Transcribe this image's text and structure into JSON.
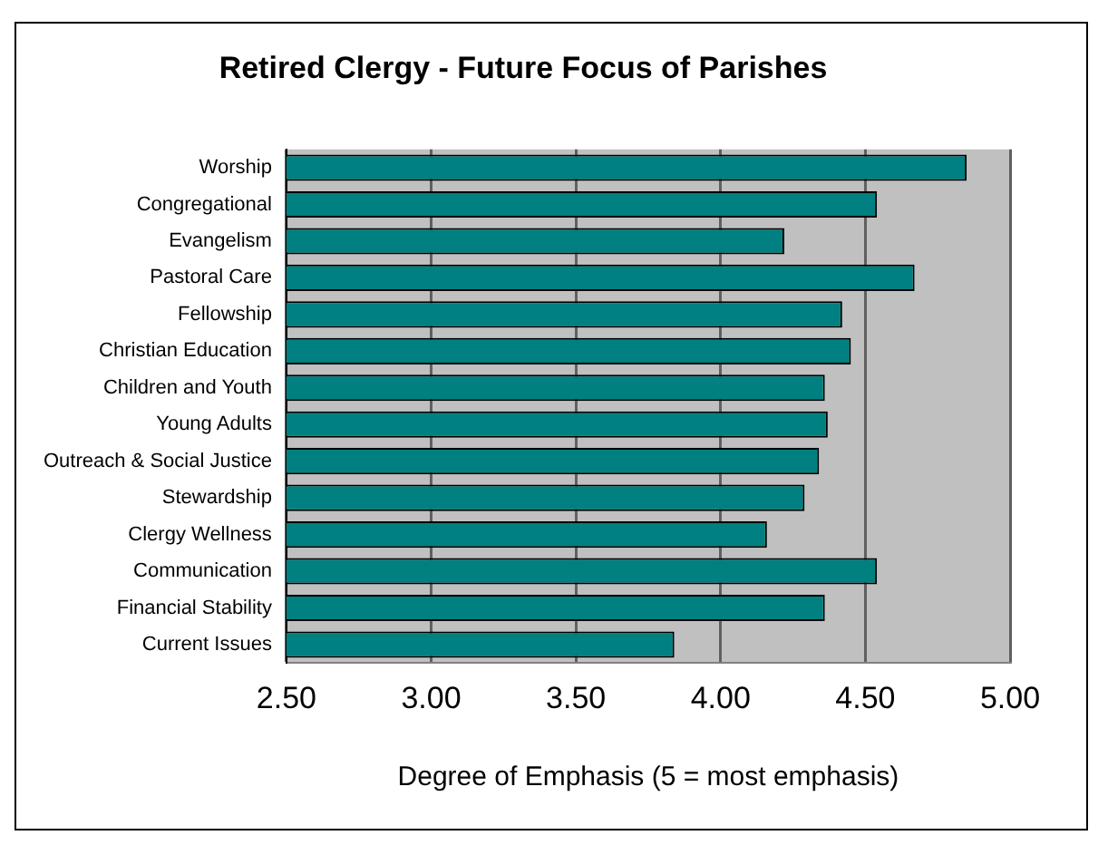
{
  "chart_data": {
    "type": "bar",
    "orientation": "horizontal",
    "title": "Retired Clergy - Future Focus of Parishes",
    "xlabel": "Degree of Emphasis (5 = most emphasis)",
    "categories": [
      "Worship",
      "Congregational",
      "Evangelism",
      "Pastoral Care",
      "Fellowship",
      "Christian Education",
      "Children and Youth",
      "Young Adults",
      "Outreach & Social Justice",
      "Stewardship",
      "Clergy Wellness",
      "Communication",
      "Financial Stability",
      "Current Issues"
    ],
    "values": [
      4.85,
      4.54,
      4.22,
      4.67,
      4.42,
      4.45,
      4.36,
      4.37,
      4.34,
      4.29,
      4.16,
      4.54,
      4.36,
      3.84
    ],
    "color": "#008080",
    "xlim": [
      2.5,
      5
    ],
    "xticks": [
      {
        "value": 2.5,
        "label": "2.50"
      },
      {
        "value": 3,
        "label": "3.00"
      },
      {
        "value": 3.5,
        "label": "3.50"
      },
      {
        "value": 4,
        "label": "4.00"
      },
      {
        "value": 4.5,
        "label": "4.50"
      },
      {
        "value": 5,
        "label": "5.00"
      }
    ],
    "grid": "x"
  }
}
